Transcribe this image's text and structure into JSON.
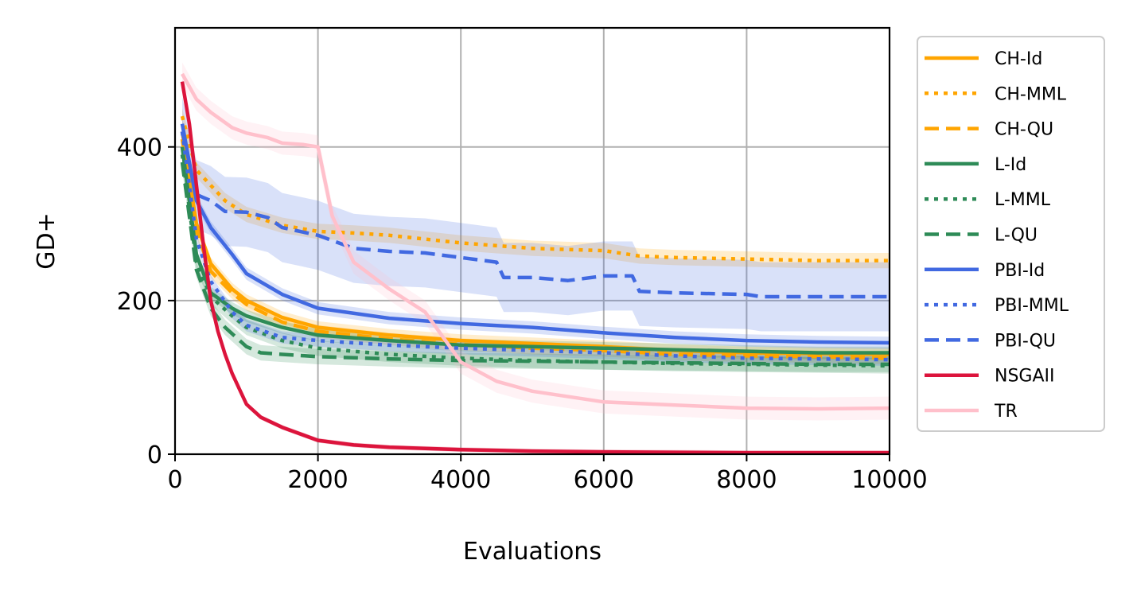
{
  "chart_data": {
    "type": "line",
    "title": "",
    "xlabel": "Evaluations",
    "ylabel": "GD+",
    "xlim": [
      0,
      10000
    ],
    "ylim": [
      0,
      555
    ],
    "xticks": [
      0,
      2000,
      4000,
      6000,
      8000,
      10000
    ],
    "xtick_labels": [
      "0",
      "2000",
      "4000",
      "6000",
      "8000",
      "10000"
    ],
    "yticks": [
      0,
      200,
      400
    ],
    "ytick_labels": [
      "0",
      "200",
      "400"
    ],
    "grid": true,
    "legend_position": "outside-right",
    "series": [
      {
        "name": "CH-Id",
        "color": "#ffa500",
        "dash": "solid",
        "band": 8,
        "x": [
          100,
          300,
          500,
          800,
          1000,
          1500,
          2000,
          3000,
          4000,
          5000,
          6000,
          7000,
          8000,
          9000,
          10000
        ],
        "y": [
          420,
          300,
          248,
          215,
          200,
          178,
          165,
          155,
          148,
          144,
          140,
          135,
          132,
          131,
          130
        ]
      },
      {
        "name": "CH-MML",
        "color": "#ffa500",
        "dash": "dotted",
        "band": 10,
        "x": [
          100,
          300,
          500,
          700,
          1000,
          1500,
          2000,
          2500,
          3000,
          3500,
          4000,
          5000,
          6000,
          6500,
          7000,
          8000,
          9000,
          10000
        ],
        "y": [
          440,
          370,
          350,
          330,
          312,
          298,
          290,
          288,
          285,
          280,
          275,
          268,
          265,
          258,
          256,
          254,
          252,
          252
        ]
      },
      {
        "name": "CH-QU",
        "color": "#ffa500",
        "dash": "dashed",
        "band": 8,
        "x": [
          100,
          300,
          500,
          800,
          1000,
          1500,
          2000,
          3000,
          4000,
          5000,
          6000,
          7000,
          8000,
          9000,
          10000
        ],
        "y": [
          410,
          290,
          238,
          210,
          195,
          172,
          160,
          150,
          143,
          138,
          135,
          130,
          128,
          127,
          125
        ]
      },
      {
        "name": "L-Id",
        "color": "#2e8b57",
        "dash": "solid",
        "band": 8,
        "x": [
          100,
          300,
          500,
          800,
          1000,
          1500,
          2000,
          3000,
          4000,
          5000,
          6000,
          7000,
          8000,
          9000,
          10000
        ],
        "y": [
          400,
          260,
          210,
          190,
          180,
          165,
          155,
          148,
          142,
          140,
          138,
          136,
          134,
          132,
          132
        ]
      },
      {
        "name": "L-MML",
        "color": "#2e8b57",
        "dash": "dotted",
        "band": 10,
        "x": [
          100,
          300,
          500,
          800,
          1000,
          1500,
          2000,
          3000,
          4000,
          5000,
          6000,
          7000,
          8000,
          9000,
          10000
        ],
        "y": [
          390,
          250,
          205,
          180,
          165,
          148,
          138,
          130,
          125,
          122,
          120,
          118,
          117,
          116,
          115
        ]
      },
      {
        "name": "L-QU",
        "color": "#2e8b57",
        "dash": "dashed",
        "band": 10,
        "x": [
          100,
          300,
          500,
          700,
          1000,
          1200,
          1500,
          2000,
          3000,
          4000,
          5000,
          6000,
          7000,
          8000,
          9000,
          10000
        ],
        "y": [
          380,
          240,
          190,
          165,
          140,
          132,
          130,
          127,
          124,
          122,
          121,
          120,
          119,
          118,
          117,
          117
        ]
      },
      {
        "name": "PBI-Id",
        "color": "#4169e1",
        "dash": "solid",
        "band": 8,
        "x": [
          100,
          300,
          500,
          800,
          1000,
          1500,
          2000,
          3000,
          4000,
          5000,
          6000,
          7000,
          8000,
          9000,
          10000
        ],
        "y": [
          430,
          330,
          295,
          260,
          235,
          208,
          190,
          177,
          170,
          165,
          158,
          152,
          148,
          146,
          145
        ]
      },
      {
        "name": "PBI-MML",
        "color": "#4169e1",
        "dash": "dotted",
        "band": 8,
        "x": [
          100,
          300,
          500,
          800,
          1000,
          1500,
          2000,
          3000,
          4000,
          5000,
          6000,
          7000,
          8000,
          9000,
          10000
        ],
        "y": [
          420,
          280,
          225,
          185,
          168,
          152,
          148,
          142,
          138,
          135,
          132,
          128,
          125,
          124,
          123
        ]
      },
      {
        "name": "PBI-QU",
        "color": "#4169e1",
        "dash": "dashed",
        "band": 45,
        "x": [
          100,
          300,
          500,
          700,
          1000,
          1300,
          1500,
          2000,
          2500,
          3000,
          3500,
          4000,
          4500,
          4600,
          5000,
          5500,
          6000,
          6400,
          6500,
          7000,
          8000,
          8200,
          9000,
          10000
        ],
        "y": [
          420,
          338,
          330,
          316,
          315,
          308,
          295,
          285,
          268,
          264,
          262,
          256,
          250,
          230,
          230,
          226,
          232,
          232,
          212,
          210,
          208,
          205,
          205,
          205
        ]
      },
      {
        "name": "NSGAII",
        "color": "#dc143c",
        "dash": "solid",
        "band": 3,
        "x": [
          100,
          200,
          300,
          400,
          500,
          600,
          700,
          800,
          900,
          1000,
          1200,
          1500,
          2000,
          2500,
          3000,
          4000,
          5000,
          6000,
          8000,
          10000
        ],
        "y": [
          485,
          430,
          350,
          270,
          200,
          160,
          130,
          105,
          85,
          65,
          48,
          35,
          18,
          12,
          9,
          6,
          4,
          3,
          2,
          2
        ]
      },
      {
        "name": "TR",
        "color": "#ffc0cb",
        "dash": "solid",
        "band": 15,
        "x": [
          100,
          300,
          500,
          800,
          1000,
          1300,
          1500,
          1800,
          2000,
          2200,
          2500,
          3000,
          3500,
          4000,
          4500,
          5000,
          6000,
          7000,
          8000,
          9000,
          10000
        ],
        "y": [
          495,
          462,
          445,
          425,
          418,
          412,
          405,
          403,
          400,
          310,
          250,
          215,
          185,
          120,
          95,
          82,
          68,
          64,
          60,
          59,
          60
        ]
      }
    ]
  }
}
